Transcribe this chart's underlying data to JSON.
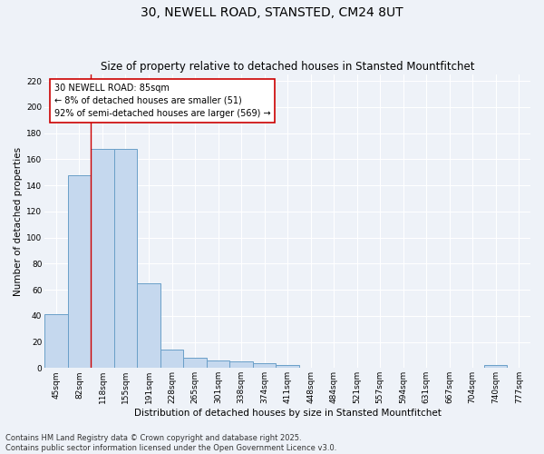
{
  "title": "30, NEWELL ROAD, STANSTED, CM24 8UT",
  "subtitle": "Size of property relative to detached houses in Stansted Mountfitchet",
  "xlabel": "Distribution of detached houses by size in Stansted Mountfitchet",
  "ylabel": "Number of detached properties",
  "categories": [
    "45sqm",
    "82sqm",
    "118sqm",
    "155sqm",
    "191sqm",
    "228sqm",
    "265sqm",
    "301sqm",
    "338sqm",
    "374sqm",
    "411sqm",
    "448sqm",
    "484sqm",
    "521sqm",
    "557sqm",
    "594sqm",
    "631sqm",
    "667sqm",
    "704sqm",
    "740sqm",
    "777sqm"
  ],
  "values": [
    41,
    148,
    168,
    168,
    65,
    14,
    8,
    6,
    5,
    4,
    2,
    0,
    0,
    0,
    0,
    0,
    0,
    0,
    0,
    2,
    0
  ],
  "bar_color": "#c5d8ee",
  "bar_edge_color": "#6a9fc8",
  "annotation_text": "30 NEWELL ROAD: 85sqm\n← 8% of detached houses are smaller (51)\n92% of semi-detached houses are larger (569) →",
  "annotation_box_color": "#ffffff",
  "annotation_box_edge": "#cc0000",
  "vline_color": "#cc0000",
  "vline_x": 1.5,
  "ylim": [
    0,
    225
  ],
  "yticks": [
    0,
    20,
    40,
    60,
    80,
    100,
    120,
    140,
    160,
    180,
    200,
    220
  ],
  "footer_line1": "Contains HM Land Registry data © Crown copyright and database right 2025.",
  "footer_line2": "Contains public sector information licensed under the Open Government Licence v3.0.",
  "bg_color": "#eef2f8",
  "grid_color": "#ffffff",
  "title_fontsize": 10,
  "subtitle_fontsize": 8.5,
  "axis_label_fontsize": 7.5,
  "tick_fontsize": 6.5,
  "footer_fontsize": 6,
  "annot_fontsize": 7
}
